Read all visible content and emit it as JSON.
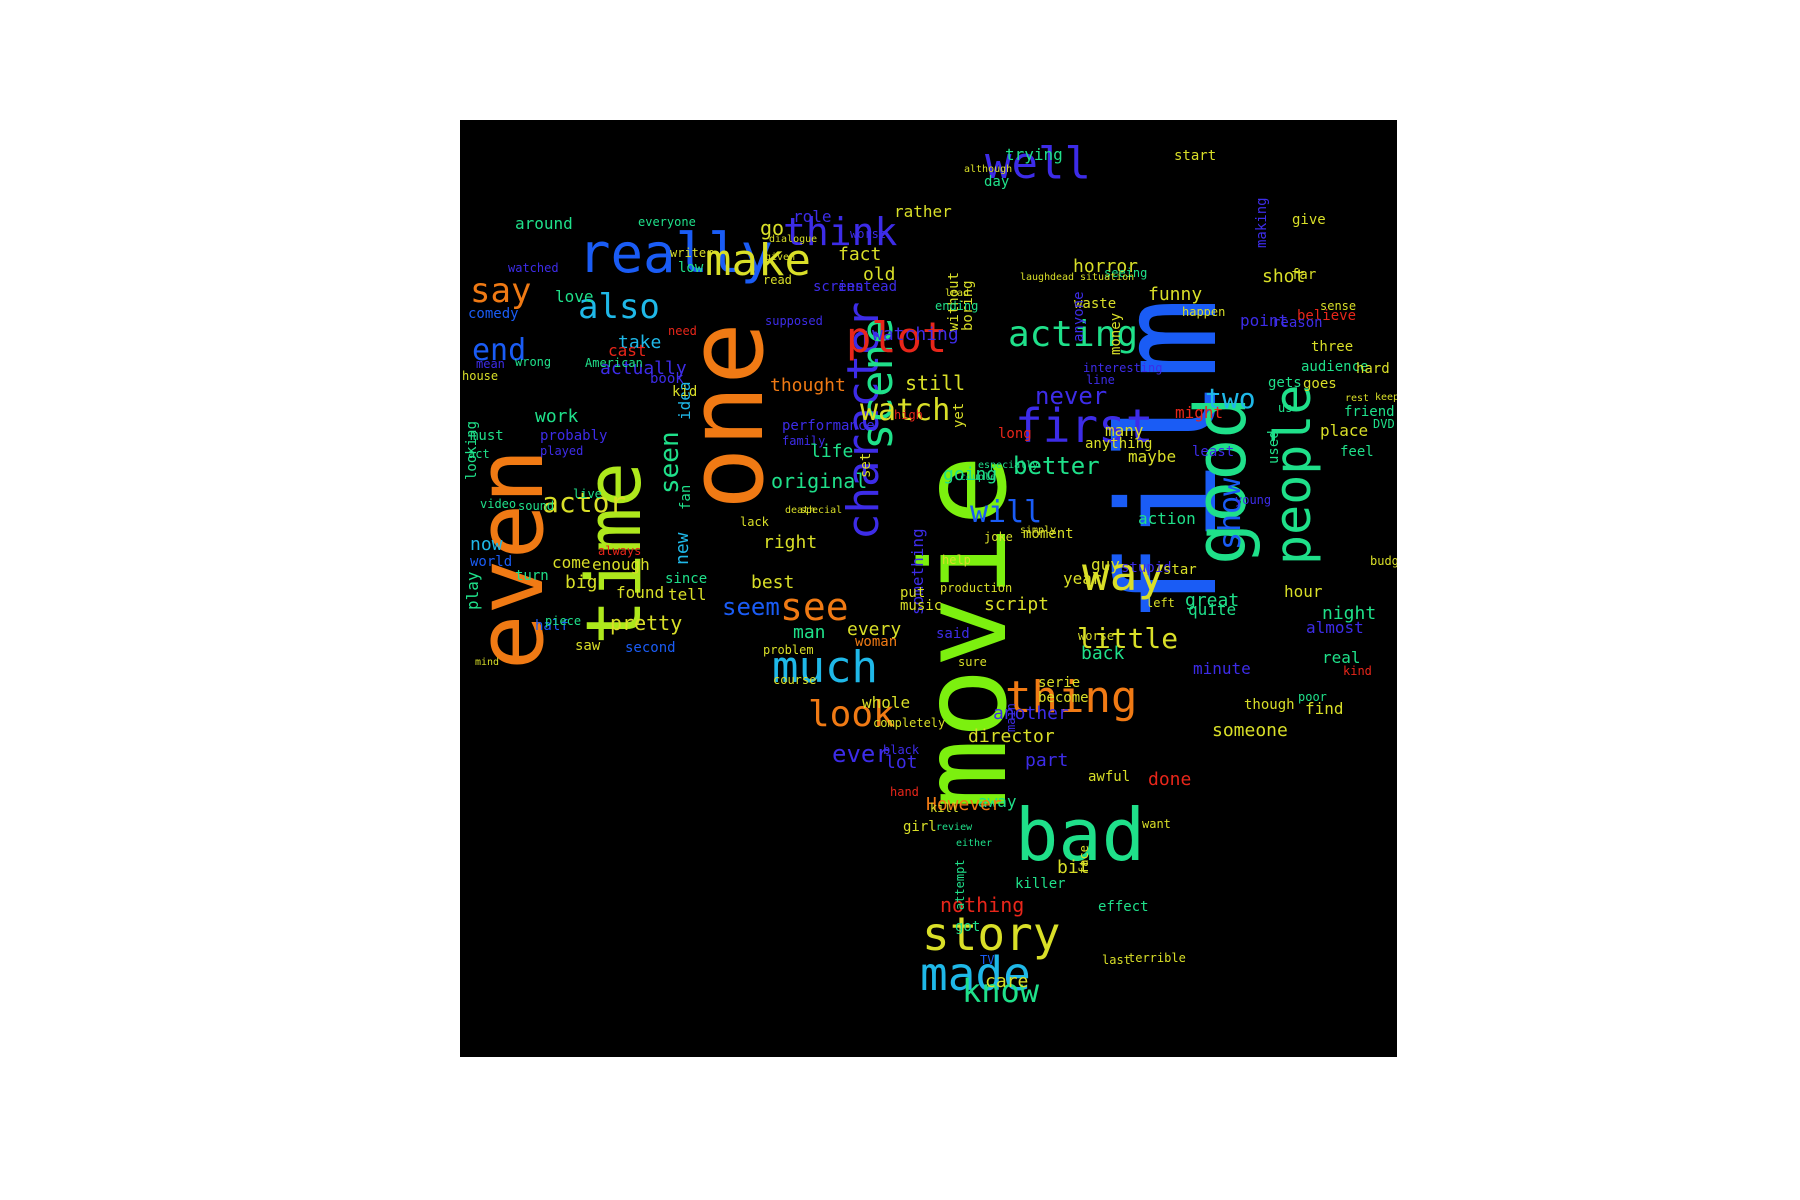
{
  "palette": {
    "green": "#7cf00f",
    "orange": "#f07a14",
    "blue": "#1a5cf5",
    "cyan": "#1fb8e8",
    "teal": "#1fe08a",
    "yellow": "#d9df28",
    "indigo": "#3d2ce8",
    "red": "#e8261a",
    "lime": "#aee81c"
  },
  "words": [
    {
      "text": "movie",
      "color": "green"
    },
    {
      "text": "film",
      "color": "blue"
    },
    {
      "text": "one",
      "color": "orange"
    },
    {
      "text": "even",
      "color": "orange"
    },
    {
      "text": "time",
      "color": "lime"
    },
    {
      "text": "bad",
      "color": "teal"
    },
    {
      "text": "good",
      "color": "teal"
    },
    {
      "text": "people",
      "color": "teal"
    },
    {
      "text": "story",
      "color": "yellow"
    },
    {
      "text": "made",
      "color": "cyan"
    },
    {
      "text": "really",
      "color": "blue"
    },
    {
      "text": "well",
      "color": "indigo"
    },
    {
      "text": "make",
      "color": "yellow"
    },
    {
      "text": "character",
      "color": "indigo"
    },
    {
      "text": "scene",
      "color": "teal"
    },
    {
      "text": "much",
      "color": "cyan"
    },
    {
      "text": "thing",
      "color": "orange"
    },
    {
      "text": "way",
      "color": "yellow"
    },
    {
      "text": "first",
      "color": "indigo"
    },
    {
      "text": "plot",
      "color": "red"
    },
    {
      "text": "think",
      "color": "indigo"
    },
    {
      "text": "also",
      "color": "cyan"
    },
    {
      "text": "see",
      "color": "orange"
    },
    {
      "text": "look",
      "color": "orange"
    },
    {
      "text": "know",
      "color": "teal"
    },
    {
      "text": "acting",
      "color": "teal"
    },
    {
      "text": "watch",
      "color": "yellow"
    },
    {
      "text": "will",
      "color": "blue"
    },
    {
      "text": "say",
      "color": "orange"
    },
    {
      "text": "end",
      "color": "blue"
    },
    {
      "text": "actor",
      "color": "yellow"
    },
    {
      "text": "show",
      "color": "blue"
    },
    {
      "text": "little",
      "color": "yellow"
    },
    {
      "text": "two",
      "color": "cyan"
    },
    {
      "text": "seem",
      "color": "blue"
    },
    {
      "text": "seen",
      "color": "teal"
    },
    {
      "text": "better",
      "color": "teal"
    },
    {
      "text": "never",
      "color": "indigo"
    },
    {
      "text": "ever",
      "color": "indigo"
    },
    {
      "text": "pretty",
      "color": "yellow"
    },
    {
      "text": "nothing",
      "color": "red"
    },
    {
      "text": "great",
      "color": "teal"
    },
    {
      "text": "funny",
      "color": "yellow"
    },
    {
      "text": "horror",
      "color": "yellow"
    },
    {
      "text": "script",
      "color": "yellow"
    },
    {
      "text": "director",
      "color": "yellow"
    },
    {
      "text": "actually",
      "color": "indigo"
    },
    {
      "text": "take",
      "color": "cyan"
    },
    {
      "text": "cast",
      "color": "red"
    },
    {
      "text": "work",
      "color": "teal"
    },
    {
      "text": "love",
      "color": "teal"
    },
    {
      "text": "around",
      "color": "teal"
    },
    {
      "text": "come",
      "color": "yellow"
    },
    {
      "text": "enough",
      "color": "yellow"
    },
    {
      "text": "big",
      "color": "yellow"
    },
    {
      "text": "found",
      "color": "yellow"
    },
    {
      "text": "tell",
      "color": "yellow"
    },
    {
      "text": "since",
      "color": "teal"
    },
    {
      "text": "new",
      "color": "cyan"
    },
    {
      "text": "now",
      "color": "cyan"
    },
    {
      "text": "play",
      "color": "teal"
    },
    {
      "text": "world",
      "color": "blue"
    },
    {
      "text": "idea",
      "color": "cyan"
    },
    {
      "text": "kid",
      "color": "yellow"
    },
    {
      "text": "must",
      "color": "teal"
    },
    {
      "text": "house",
      "color": "yellow"
    },
    {
      "text": "mean",
      "color": "indigo"
    },
    {
      "text": "probably",
      "color": "indigo"
    },
    {
      "text": "played",
      "color": "indigo"
    },
    {
      "text": "comedy",
      "color": "blue"
    },
    {
      "text": "book",
      "color": "indigo"
    },
    {
      "text": "wrong",
      "color": "teal"
    },
    {
      "text": "fan",
      "color": "teal"
    },
    {
      "text": "video",
      "color": "teal"
    },
    {
      "text": "sound",
      "color": "teal"
    },
    {
      "text": "looking",
      "color": "teal"
    },
    {
      "text": "turn",
      "color": "teal"
    },
    {
      "text": "half",
      "color": "blue"
    },
    {
      "text": "saw",
      "color": "yellow"
    },
    {
      "text": "second",
      "color": "blue"
    },
    {
      "text": "always",
      "color": "red"
    },
    {
      "text": "live",
      "color": "teal"
    },
    {
      "text": "low",
      "color": "teal"
    },
    {
      "text": "need",
      "color": "red"
    },
    {
      "text": "act",
      "color": "teal"
    },
    {
      "text": "watched",
      "color": "indigo"
    },
    {
      "text": "writer",
      "color": "yellow"
    },
    {
      "text": "everyone",
      "color": "teal"
    },
    {
      "text": "American",
      "color": "teal"
    },
    {
      "text": "fact",
      "color": "yellow"
    },
    {
      "text": "old",
      "color": "yellow"
    },
    {
      "text": "go",
      "color": "yellow"
    },
    {
      "text": "role",
      "color": "indigo"
    },
    {
      "text": "screen",
      "color": "indigo"
    },
    {
      "text": "instead",
      "color": "indigo"
    },
    {
      "text": "watching",
      "color": "indigo"
    },
    {
      "text": "still",
      "color": "yellow"
    },
    {
      "text": "thought",
      "color": "orange"
    },
    {
      "text": "performance",
      "color": "indigo"
    },
    {
      "text": "family",
      "color": "indigo"
    },
    {
      "text": "life",
      "color": "teal"
    },
    {
      "text": "original",
      "color": "teal"
    },
    {
      "text": "going",
      "color": "teal"
    },
    {
      "text": "right",
      "color": "yellow"
    },
    {
      "text": "best",
      "color": "yellow"
    },
    {
      "text": "man",
      "color": "teal"
    },
    {
      "text": "every",
      "color": "yellow"
    },
    {
      "text": "problem",
      "color": "yellow"
    },
    {
      "text": "something",
      "color": "indigo"
    },
    {
      "text": "put",
      "color": "yellow"
    },
    {
      "text": "music",
      "color": "yellow"
    },
    {
      "text": "said",
      "color": "indigo"
    },
    {
      "text": "woman",
      "color": "orange"
    },
    {
      "text": "sure",
      "color": "yellow"
    },
    {
      "text": "whole",
      "color": "yellow"
    },
    {
      "text": "lot",
      "color": "indigo"
    },
    {
      "text": "another",
      "color": "indigo"
    },
    {
      "text": "part",
      "color": "indigo"
    },
    {
      "text": "back",
      "color": "teal"
    },
    {
      "text": "done",
      "color": "red"
    },
    {
      "text": "awful",
      "color": "yellow"
    },
    {
      "text": "away",
      "color": "teal"
    },
    {
      "text": "However",
      "color": "orange"
    },
    {
      "text": "girl",
      "color": "yellow"
    },
    {
      "text": "someone",
      "color": "yellow"
    },
    {
      "text": "minute",
      "color": "indigo"
    },
    {
      "text": "quite",
      "color": "teal"
    },
    {
      "text": "year",
      "color": "yellow"
    },
    {
      "text": "action",
      "color": "teal"
    },
    {
      "text": "guy",
      "color": "yellow"
    },
    {
      "text": "stupid",
      "color": "indigo"
    },
    {
      "text": "star",
      "color": "yellow"
    },
    {
      "text": "serie",
      "color": "yellow"
    },
    {
      "text": "become",
      "color": "yellow"
    },
    {
      "text": "moment",
      "color": "yellow"
    },
    {
      "text": "maybe",
      "color": "yellow"
    },
    {
      "text": "might",
      "color": "red"
    },
    {
      "text": "many",
      "color": "yellow"
    },
    {
      "text": "anything",
      "color": "yellow"
    },
    {
      "text": "interesting",
      "color": "indigo"
    },
    {
      "text": "line",
      "color": "indigo"
    },
    {
      "text": "money",
      "color": "yellow"
    },
    {
      "text": "happen",
      "color": "yellow"
    },
    {
      "text": "shot",
      "color": "yellow"
    },
    {
      "text": "audience",
      "color": "teal"
    },
    {
      "text": "give",
      "color": "yellow"
    },
    {
      "text": "far",
      "color": "yellow"
    },
    {
      "text": "making",
      "color": "indigo"
    },
    {
      "text": "start",
      "color": "yellow"
    },
    {
      "text": "trying",
      "color": "teal"
    },
    {
      "text": "day",
      "color": "teal"
    },
    {
      "text": "rather",
      "color": "yellow"
    },
    {
      "text": "worst",
      "color": "indigo"
    },
    {
      "text": "waste",
      "color": "yellow"
    },
    {
      "text": "point",
      "color": "indigo"
    },
    {
      "text": "sense",
      "color": "yellow"
    },
    {
      "text": "believe",
      "color": "red"
    },
    {
      "text": "reason",
      "color": "indigo"
    },
    {
      "text": "hard",
      "color": "yellow"
    },
    {
      "text": "three",
      "color": "yellow"
    },
    {
      "text": "goes",
      "color": "yellow"
    },
    {
      "text": "gets",
      "color": "teal"
    },
    {
      "text": "place",
      "color": "yellow"
    },
    {
      "text": "feel",
      "color": "teal"
    },
    {
      "text": "least",
      "color": "indigo"
    },
    {
      "text": "young",
      "color": "indigo"
    },
    {
      "text": "budget",
      "color": "yellow"
    },
    {
      "text": "hour",
      "color": "yellow"
    },
    {
      "text": "night",
      "color": "teal"
    },
    {
      "text": "almost",
      "color": "indigo"
    },
    {
      "text": "real",
      "color": "teal"
    },
    {
      "text": "find",
      "color": "yellow"
    },
    {
      "text": "poor",
      "color": "teal"
    },
    {
      "text": "though",
      "color": "yellow"
    },
    {
      "text": "kind",
      "color": "red"
    },
    {
      "text": "friend",
      "color": "teal"
    },
    {
      "text": "DVD",
      "color": "teal"
    },
    {
      "text": "us",
      "color": "teal"
    },
    {
      "text": "used",
      "color": "teal"
    },
    {
      "text": "bit",
      "color": "yellow"
    },
    {
      "text": "got",
      "color": "teal"
    },
    {
      "text": "effect",
      "color": "teal"
    },
    {
      "text": "terrible",
      "color": "yellow"
    },
    {
      "text": "TV",
      "color": "blue"
    },
    {
      "text": "last",
      "color": "yellow"
    },
    {
      "text": "care",
      "color": "yellow"
    },
    {
      "text": "killer",
      "color": "teal"
    },
    {
      "text": "want",
      "color": "yellow"
    },
    {
      "text": "main",
      "color": "indigo"
    },
    {
      "text": "yet",
      "color": "yellow"
    },
    {
      "text": "long",
      "color": "red"
    },
    {
      "text": "without",
      "color": "yellow"
    },
    {
      "text": "boring",
      "color": "yellow"
    },
    {
      "text": "anyone",
      "color": "indigo"
    },
    {
      "text": "supposed",
      "color": "indigo"
    },
    {
      "text": "set",
      "color": "yellow"
    },
    {
      "text": "high",
      "color": "red"
    },
    {
      "text": "ending",
      "color": "teal"
    },
    {
      "text": "lead",
      "color": "yellow"
    },
    {
      "text": "read",
      "color": "yellow"
    },
    {
      "text": "given",
      "color": "yellow"
    },
    {
      "text": "dialogue",
      "color": "yellow"
    },
    {
      "text": "although",
      "color": "yellow"
    },
    {
      "text": "seeing",
      "color": "teal"
    },
    {
      "text": "kill",
      "color": "yellow"
    },
    {
      "text": "production",
      "color": "yellow"
    },
    {
      "text": "help",
      "color": "yellow"
    },
    {
      "text": "worse",
      "color": "yellow"
    },
    {
      "text": "left",
      "color": "yellow"
    },
    {
      "text": "face",
      "color": "yellow"
    },
    {
      "text": "attempt",
      "color": "teal"
    },
    {
      "text": "either",
      "color": "teal"
    },
    {
      "text": "review",
      "color": "teal"
    },
    {
      "text": "hand",
      "color": "red"
    },
    {
      "text": "black",
      "color": "indigo"
    },
    {
      "text": "completely",
      "color": "yellow"
    },
    {
      "text": "course",
      "color": "yellow"
    },
    {
      "text": "joke",
      "color": "yellow"
    },
    {
      "text": "simply",
      "color": "yellow"
    },
    {
      "text": "lack",
      "color": "yellow"
    },
    {
      "text": "death",
      "color": "yellow"
    },
    {
      "text": "keep",
      "color": "yellow"
    },
    {
      "text": "rest",
      "color": "yellow"
    },
    {
      "text": "special",
      "color": "yellow"
    },
    {
      "text": "couple",
      "color": "teal"
    },
    {
      "text": "especially",
      "color": "teal"
    },
    {
      "text": "piece",
      "color": "teal"
    },
    {
      "text": "mind",
      "color": "yellow"
    },
    {
      "text": "laugh",
      "color": "yellow"
    },
    {
      "text": "dead",
      "color": "yellow"
    },
    {
      "text": "situation",
      "color": "yellow"
    }
  ]
}
